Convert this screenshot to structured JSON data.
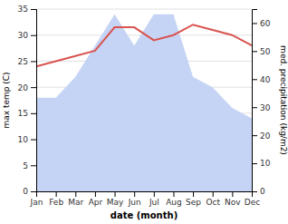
{
  "chart_data": {
    "type": "line",
    "x_label": "date (month)",
    "y_label": "max temp (C)",
    "y2_label": "med. precipitation (kg/m2)",
    "categories": [
      "Jan",
      "Feb",
      "Mar",
      "Apr",
      "May",
      "Jun",
      "Jul",
      "Aug",
      "Sep",
      "Oct",
      "Nov",
      "Dec"
    ],
    "series": [
      {
        "type": "area",
        "color": "#c5d4f5",
        "values": [
          18,
          18,
          22,
          28,
          34,
          28,
          34,
          34,
          22,
          20,
          16,
          14
        ]
      },
      {
        "type": "line",
        "color": "#d9534f",
        "values": [
          24,
          25,
          26,
          27,
          31.5,
          31.5,
          29,
          30,
          32,
          31,
          30,
          28
        ]
      }
    ],
    "ylim": [
      0,
      35
    ],
    "yticks": [
      0,
      5,
      10,
      15,
      20,
      25,
      30,
      35
    ],
    "y2lim": [
      0,
      65
    ],
    "y2ticks": [
      0,
      10,
      20,
      30,
      40,
      50,
      60
    ],
    "grid": true
  }
}
